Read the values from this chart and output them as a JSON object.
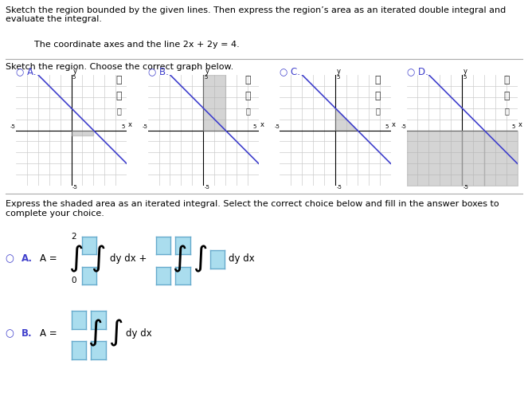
{
  "title_text": "Sketch the region bounded by the given lines. Then express the region’s area as an iterated double integral and\nevaluate the integral.",
  "subtitle_text": "The coordinate axes and the line 2x + 2y = 4.",
  "section1_text": "Sketch the region. Choose the correct graph below.",
  "section2_text": "Express the shaded area as an iterated integral. Select the correct choice below and fill in the answer boxes to\ncomplete your choice.",
  "graph_labels": [
    "A.",
    "B.",
    "C.",
    "D."
  ],
  "axis_range": [
    -5,
    5
  ],
  "line_color": "#4040cc",
  "shade_color": "#aaaaaa",
  "shade_alpha": 0.5,
  "grid_color": "#cccccc",
  "background": "#ffffff",
  "radio_color": "#4040cc",
  "box_color": "#aaddee",
  "box_border": "#66aacc"
}
